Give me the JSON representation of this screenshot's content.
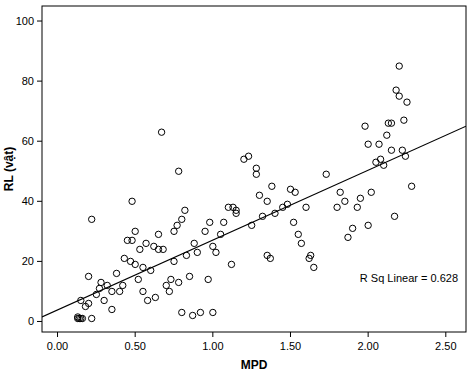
{
  "chart_data": {
    "type": "scatter",
    "x_label": "MPD",
    "y_label": "RL (vật)",
    "annotation": "R Sq Linear = 0.628",
    "marker": "circle",
    "color": "#000000",
    "xlim": [
      -0.1,
      2.63
    ],
    "ylim": [
      -3.5,
      105
    ],
    "xticks": [
      {
        "value": 0,
        "label": "0.00"
      },
      {
        "value": 0.5,
        "label": "0.50"
      },
      {
        "value": 1,
        "label": "1.00"
      },
      {
        "value": 1.5,
        "label": "1.50"
      },
      {
        "value": 2,
        "label": "2.00"
      },
      {
        "value": 2.5,
        "label": "2.50"
      }
    ],
    "yticks": [
      0,
      20,
      40,
      60,
      80,
      100
    ],
    "grid": false,
    "x": [
      0.13,
      0.14,
      0.15,
      0.13,
      0.16,
      0.15,
      0.18,
      0.2,
      0.22,
      0.2,
      0.25,
      0.22,
      0.27,
      0.28,
      0.3,
      0.32,
      0.35,
      0.35,
      0.38,
      0.4,
      0.42,
      0.43,
      0.45,
      0.47,
      0.48,
      0.48,
      0.5,
      0.5,
      0.52,
      0.53,
      0.55,
      0.55,
      0.57,
      0.58,
      0.6,
      0.62,
      0.63,
      0.65,
      0.65,
      0.67,
      0.68,
      0.7,
      0.72,
      0.73,
      0.75,
      0.75,
      0.77,
      0.78,
      0.78,
      0.8,
      0.8,
      0.82,
      0.83,
      0.85,
      0.87,
      0.88,
      0.9,
      0.92,
      0.95,
      0.97,
      0.98,
      1.0,
      1.0,
      1.02,
      1.05,
      1.07,
      1.1,
      1.12,
      1.13,
      1.15,
      1.15,
      1.2,
      1.23,
      1.25,
      1.28,
      1.28,
      1.3,
      1.32,
      1.35,
      1.35,
      1.37,
      1.38,
      1.4,
      1.45,
      1.48,
      1.5,
      1.52,
      1.53,
      1.55,
      1.57,
      1.6,
      1.62,
      1.63,
      1.65,
      1.73,
      1.8,
      1.82,
      1.85,
      1.87,
      1.9,
      1.93,
      1.95,
      1.98,
      2.0,
      2.0,
      2.02,
      2.05,
      2.07,
      2.08,
      2.1,
      2.12,
      2.13,
      2.15,
      2.15,
      2.17,
      2.18,
      2.2,
      2.2,
      2.22,
      2.23,
      2.24,
      2.25,
      2.28
    ],
    "values": [
      1,
      1,
      1,
      1.5,
      1,
      7,
      5,
      15,
      34,
      6,
      9,
      1,
      11,
      13,
      7,
      12,
      4,
      10,
      16,
      10,
      12,
      21,
      27,
      20,
      40,
      27,
      30,
      19,
      14,
      24,
      10,
      18,
      26,
      7,
      17,
      25,
      8,
      29,
      24,
      63,
      24,
      12,
      10,
      14,
      20,
      30,
      32,
      50,
      13,
      34,
      3,
      37,
      22,
      15,
      2,
      26,
      23,
      3,
      30,
      14,
      33,
      3,
      25,
      23,
      29,
      33,
      38,
      19,
      38,
      36,
      37,
      54,
      55,
      32,
      51,
      49,
      42,
      35,
      22,
      40,
      21,
      45,
      36,
      38,
      39,
      44,
      33,
      43,
      29,
      26,
      38,
      21,
      22,
      18,
      49,
      38,
      43,
      40,
      28,
      31,
      38,
      41,
      65,
      32,
      59,
      43,
      53,
      59,
      54,
      52,
      62,
      66,
      66,
      57,
      35,
      77,
      85,
      75,
      57,
      67,
      55,
      73,
      45
    ],
    "fit_line": {
      "x": [
        -0.1,
        2.63
      ],
      "values": [
        1.5,
        65
      ],
      "color": "#000000",
      "line_style": "solid"
    }
  }
}
